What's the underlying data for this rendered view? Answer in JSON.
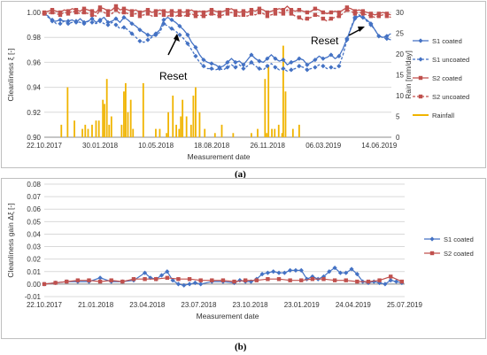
{
  "caption_a": "(a)",
  "caption_b": "(b)",
  "chart_data": [
    {
      "type": "line",
      "xlabel": "Measurement date",
      "ylabel": "Cleanliness ξ [-]",
      "y2label": "Rain [mm/day]",
      "ylim": [
        0.9,
        1.0
      ],
      "y2lim": [
        0,
        30
      ],
      "yticks": [
        "1.00",
        "0.98",
        "0.96",
        "0.94",
        "0.92",
        "0.90"
      ],
      "y2ticks": [
        "30",
        "25",
        "20",
        "15",
        "10",
        "5",
        "0"
      ],
      "xticks": [
        "22.10.2017",
        "30.01.2018",
        "10.05.2018",
        "18.08.2018",
        "26.11.2018",
        "06.03.2019",
        "14.06.2019"
      ],
      "grid": true,
      "legend_position": "right",
      "annotations": [
        "Reset",
        "Reset"
      ],
      "colors": {
        "s1": "#4472c4",
        "s2": "#c0504d",
        "rain": "#f0b400"
      },
      "series": [
        {
          "name": "S1 coated",
          "style": "solid-diamond",
          "x": [
            0,
            7,
            14,
            21,
            28,
            35,
            42,
            49,
            56,
            63,
            70,
            77,
            84,
            91,
            98,
            105,
            112,
            119,
            126,
            133,
            140,
            147,
            154,
            161,
            168,
            175,
            182,
            189,
            196,
            203,
            210,
            217,
            224,
            231,
            238,
            245,
            252,
            259,
            266,
            273,
            280,
            287,
            294,
            301,
            308,
            315,
            322,
            329,
            336,
            343,
            350,
            357,
            364,
            371,
            378,
            385,
            392,
            399,
            406,
            413,
            420,
            427,
            434,
            441,
            448,
            455,
            462,
            469,
            476,
            483,
            490,
            497,
            504,
            511,
            518,
            525,
            532,
            539,
            546,
            553,
            560,
            567,
            574,
            581,
            588,
            595,
            602,
            609
          ],
          "values": [
            0.999,
            0.997,
            0.993,
            0.993,
            0.994,
            0.993,
            0.993,
            0.994,
            0.992,
            0.995,
            0.992,
            0.993,
            0.995,
            0.992,
            0.994,
            0.996,
            0.992,
            0.993,
            0.995,
            0.992,
            0.996,
            0.994,
            0.991,
            0.989,
            0.986,
            0.984,
            0.982,
            0.981,
            0.983,
            0.986,
            0.994,
            0.996,
            0.994,
            0.992,
            0.989,
            0.986,
            0.982,
            0.976,
            0.972,
            0.966,
            0.962,
            0.96,
            0.959,
            0.958,
            0.956,
            0.957,
            0.96,
            0.963,
            0.96,
            0.961,
            0.958,
            0.962,
            0.966,
            0.963,
            0.961,
            0.96,
            0.963,
            0.966,
            0.963,
            0.961,
            0.962,
            0.958,
            0.96,
            0.961,
            0.963,
            0.962,
            0.958,
            0.96,
            0.962,
            0.965,
            0.963,
            0.964,
            0.966,
            0.963,
            0.965,
            0.971,
            0.979,
            0.987,
            0.995,
            0.997,
            0.996,
            0.994,
            0.991,
            0.986,
            0.981,
            0.98,
            0.981,
            0.983
          ]
        },
        {
          "name": "S1 uncoated",
          "style": "dashed-diamond",
          "x": [
            0,
            7,
            14,
            21,
            28,
            35,
            42,
            49,
            56,
            63,
            70,
            77,
            84,
            91,
            98,
            105,
            112,
            119,
            126,
            133,
            140,
            147,
            154,
            161,
            168,
            175,
            182,
            189,
            196,
            203,
            210,
            217,
            224,
            231,
            238,
            245,
            252,
            259,
            266,
            273,
            280,
            287,
            294,
            301,
            308,
            315,
            322,
            329,
            336,
            343,
            350,
            357,
            364,
            371,
            378,
            385,
            392,
            399,
            406,
            413,
            420,
            427,
            434,
            441,
            448,
            455,
            462,
            469,
            476,
            483,
            490,
            497,
            504,
            511,
            518,
            525,
            532,
            539,
            546,
            553,
            560,
            567,
            574,
            581,
            588,
            595,
            602,
            609
          ],
          "values": [
            0.999,
            0.996,
            0.994,
            0.991,
            0.991,
            0.993,
            0.991,
            0.992,
            0.993,
            0.992,
            0.991,
            0.993,
            0.992,
            0.991,
            0.993,
            0.991,
            0.99,
            0.992,
            0.99,
            0.987,
            0.988,
            0.986,
            0.983,
            0.98,
            0.977,
            0.976,
            0.978,
            0.98,
            0.982,
            0.984,
            0.991,
            0.989,
            0.987,
            0.985,
            0.982,
            0.979,
            0.975,
            0.97,
            0.965,
            0.96,
            0.957,
            0.955,
            0.955,
            0.954,
            0.955,
            0.954,
            0.956,
            0.958,
            0.956,
            0.958,
            0.955,
            0.957,
            0.96,
            0.957,
            0.955,
            0.954,
            0.957,
            0.959,
            0.956,
            0.954,
            0.955,
            0.953,
            0.954,
            0.955,
            0.957,
            0.956,
            0.954,
            0.955,
            0.956,
            0.958,
            0.957,
            0.955,
            0.956,
            0.955,
            0.957,
            0.966,
            0.978,
            0.988,
            0.996,
            0.998,
            0.996,
            0.993,
            0.99,
            0.986,
            0.981,
            0.98,
            0.979,
            0.978
          ]
        },
        {
          "name": "S2 coated",
          "style": "solid-square",
          "x": [
            0,
            7,
            14,
            21,
            28,
            35,
            42,
            49,
            56,
            63,
            70,
            77,
            84,
            91,
            98,
            105,
            112,
            119,
            126,
            133,
            140,
            147,
            154,
            161,
            168,
            175,
            182,
            189,
            196,
            203,
            210,
            217,
            224,
            231,
            238,
            245,
            252,
            259,
            266,
            273,
            280,
            287,
            294,
            301,
            308,
            315,
            322,
            329,
            336,
            343,
            350,
            357,
            364,
            371,
            378,
            385,
            392,
            399,
            406,
            413,
            420,
            427,
            434,
            441,
            448,
            455,
            462,
            469,
            476,
            483,
            490,
            497,
            504,
            511,
            518,
            525,
            532,
            539,
            546,
            553,
            560,
            567,
            574,
            581,
            588,
            595,
            602,
            609
          ],
          "values": [
            1.0,
            1.001,
            1.002,
            1.001,
            1.0,
            1.002,
            1.001,
            1.003,
            1.002,
            1.001,
            1.003,
            1.002,
            1.001,
            1.0,
            1.004,
            1.003,
            1.001,
            1.002,
            1.005,
            1.002,
            1.003,
            1.002,
            1.001,
            1.002,
            1.0,
            1.001,
            1.002,
            1.0,
            1.001,
            1.002,
            1.001,
            1.0,
            1.001,
            1.0,
            1.001,
            1.0,
            1.001,
            1.002,
            1.0,
            1.001,
            1.0,
            1.001,
            1.002,
            1.001,
            1.0,
            1.001,
            1.002,
            1.003,
            1.001,
            1.0,
            1.001,
            1.0,
            1.002,
            1.001,
            1.003,
            1.002,
            1.0,
            1.001,
            1.002,
            1.003,
            1.002,
            1.005,
            1.002,
            1.001,
            1.002,
            1.001,
            1.0,
            1.001,
            1.003,
            1.002,
            1.0,
            0.999,
            1.0,
            1.001,
            1.0,
            1.002,
            1.004,
            1.003,
            1.001,
            1.002,
            1.001,
            1.0,
            0.999,
            0.998,
            0.999,
            1.0,
            0.999,
            0.998
          ]
        },
        {
          "name": "S2 uncoated",
          "style": "dashed-square",
          "x": [
            0,
            7,
            14,
            21,
            28,
            35,
            42,
            49,
            56,
            63,
            70,
            77,
            84,
            91,
            98,
            105,
            112,
            119,
            126,
            133,
            140,
            147,
            154,
            161,
            168,
            175,
            182,
            189,
            196,
            203,
            210,
            217,
            224,
            231,
            238,
            245,
            252,
            259,
            266,
            273,
            280,
            287,
            294,
            301,
            308,
            315,
            322,
            329,
            336,
            343,
            350,
            357,
            364,
            371,
            378,
            385,
            392,
            399,
            406,
            413,
            420,
            427,
            434,
            441,
            448,
            455,
            462,
            469,
            476,
            483,
            490,
            497,
            504,
            511,
            518,
            525,
            532,
            539,
            546,
            553,
            560,
            567,
            574,
            581,
            588,
            595,
            602,
            609
          ],
          "values": [
            0.999,
            0.999,
            1.0,
            0.999,
            0.998,
            1.0,
            0.999,
            1.001,
            1.0,
            0.999,
            1.0,
            0.999,
            0.998,
            0.997,
            1.002,
            1.0,
            0.998,
            0.999,
            1.002,
            0.999,
            1.0,
            0.999,
            0.998,
            0.999,
            0.997,
            0.998,
            0.999,
            0.997,
            0.998,
            0.999,
            0.998,
            0.997,
            0.998,
            0.997,
            0.998,
            0.997,
            0.998,
            0.999,
            0.997,
            0.998,
            0.997,
            0.998,
            0.999,
            0.998,
            0.997,
            0.998,
            0.999,
            1.0,
            0.998,
            0.997,
            0.998,
            0.997,
            0.999,
            0.998,
            1.0,
            0.999,
            0.997,
            0.998,
            0.999,
            1.0,
            0.999,
            1.002,
            0.999,
            0.997,
            0.996,
            0.994,
            0.995,
            0.996,
            0.998,
            0.997,
            0.995,
            0.993,
            0.995,
            0.996,
            0.997,
            0.999,
            1.002,
            1.001,
            0.999,
            1.0,
            0.999,
            0.998,
            0.997,
            0.996,
            0.997,
            0.998,
            0.997,
            0.996
          ]
        },
        {
          "name": "Rainfall",
          "kind": "bars",
          "axis": "y2",
          "x": [
            30,
            41,
            53,
            67,
            72,
            77,
            84,
            91,
            96,
            103,
            106,
            110,
            114,
            118,
            136,
            140,
            143,
            147,
            152,
            156,
            174,
            196,
            203,
            215,
            218,
            226,
            232,
            237,
            240,
            243,
            250,
            258,
            262,
            266,
            273,
            282,
            300,
            312,
            332,
            364,
            375,
            388,
            391,
            394,
            400,
            405,
            412,
            418,
            420,
            424,
            437,
            448
          ],
          "values": [
            3,
            12,
            4,
            2,
            3,
            2,
            3,
            4,
            4,
            9,
            8,
            14,
            3,
            5,
            3,
            11,
            13,
            6,
            9,
            2,
            13,
            2,
            2,
            1,
            6,
            10,
            3,
            2,
            5,
            9,
            5,
            3,
            10,
            12,
            6,
            2,
            1,
            3,
            1,
            1,
            2,
            14,
            1,
            17,
            2,
            2,
            3,
            1,
            22,
            11,
            2,
            3
          ]
        }
      ]
    },
    {
      "type": "line",
      "xlabel": "Measurement date",
      "ylabel": "Cleanliness gain Δξ [-]",
      "ylim": [
        -0.01,
        0.08
      ],
      "yticks": [
        "0.08",
        "0.07",
        "0.06",
        "0.05",
        "0.04",
        "0.03",
        "0.02",
        "0.01",
        "0.00",
        "-0.01"
      ],
      "xticks": [
        "22.10.2017",
        "21.01.2018",
        "23.04.2018",
        "23.07.2018",
        "23.10.2018",
        "23.01.2019",
        "24.04.2019",
        "25.07.2019"
      ],
      "grid": true,
      "legend_position": "right",
      "series": [
        {
          "name": "S1 coated",
          "style": "solid-diamond",
          "x": [
            0,
            20,
            40,
            60,
            80,
            100,
            120,
            140,
            160,
            180,
            190,
            200,
            210,
            220,
            230,
            240,
            250,
            260,
            270,
            280,
            300,
            320,
            340,
            350,
            360,
            370,
            380,
            390,
            400,
            410,
            420,
            430,
            440,
            450,
            460,
            470,
            480,
            490,
            500,
            510,
            520,
            530,
            540,
            550,
            560,
            570,
            580,
            590,
            600,
            610,
            620,
            630,
            640
          ],
          "values": [
            0.0,
            0.001,
            0.002,
            0.002,
            0.002,
            0.005,
            0.002,
            0.002,
            0.003,
            0.009,
            0.005,
            0.004,
            0.007,
            0.01,
            0.003,
            0.0,
            -0.001,
            0.0,
            0.001,
            0.0,
            0.002,
            0.002,
            0.001,
            0.003,
            0.002,
            0.002,
            0.004,
            0.008,
            0.009,
            0.01,
            0.009,
            0.009,
            0.011,
            0.011,
            0.011,
            0.004,
            0.006,
            0.004,
            0.006,
            0.01,
            0.013,
            0.009,
            0.009,
            0.012,
            0.008,
            0.002,
            0.001,
            0.002,
            0.001,
            0.0,
            0.003,
            0.002,
            0.001
          ]
        },
        {
          "name": "S2 coated",
          "style": "solid-square",
          "x": [
            0,
            20,
            40,
            60,
            80,
            100,
            120,
            140,
            160,
            180,
            200,
            220,
            240,
            260,
            280,
            300,
            320,
            340,
            360,
            380,
            400,
            420,
            440,
            460,
            480,
            500,
            520,
            540,
            560,
            580,
            600,
            620,
            640
          ],
          "values": [
            0.0,
            0.001,
            0.002,
            0.003,
            0.003,
            0.002,
            0.003,
            0.002,
            0.004,
            0.004,
            0.004,
            0.005,
            0.004,
            0.004,
            0.003,
            0.003,
            0.003,
            0.002,
            0.003,
            0.003,
            0.004,
            0.004,
            0.003,
            0.003,
            0.004,
            0.004,
            0.003,
            0.003,
            0.002,
            0.002,
            0.003,
            0.006,
            0.002
          ]
        }
      ]
    }
  ]
}
